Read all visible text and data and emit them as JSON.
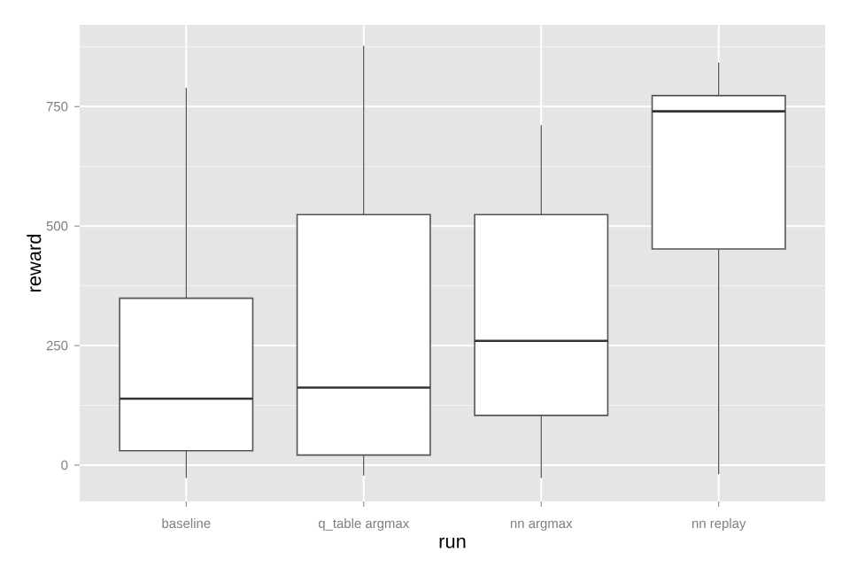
{
  "chart_data": {
    "type": "box",
    "xlabel": "run",
    "ylabel": "reward",
    "categories": [
      "baseline",
      "q_table argmax",
      "nn argmax",
      "nn replay"
    ],
    "boxes": [
      {
        "low": -27,
        "q1": 30,
        "median": 139,
        "q3": 349,
        "high": 789
      },
      {
        "low": -22,
        "q1": 21,
        "median": 162,
        "q3": 524,
        "high": 877
      },
      {
        "low": -27,
        "q1": 104,
        "median": 260,
        "q3": 524,
        "high": 711
      },
      {
        "low": -19,
        "q1": 452,
        "median": 740,
        "q3": 773,
        "high": 842
      }
    ],
    "color": "#ffffff",
    "ylim": [
      -76,
      921
    ],
    "yticks": [
      0,
      250,
      500,
      750
    ],
    "grid": true
  }
}
